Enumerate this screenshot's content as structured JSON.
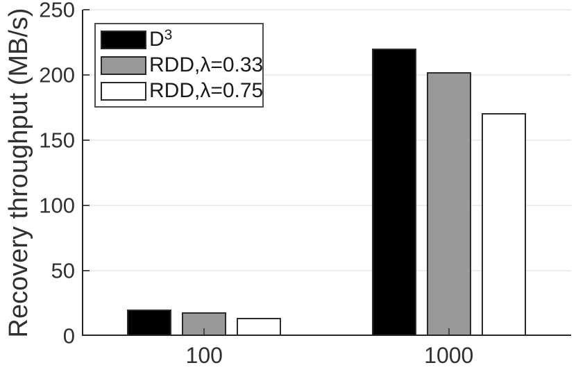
{
  "chart_data": {
    "type": "bar",
    "title": "",
    "xlabel": "",
    "ylabel": "Recovery throughput (MB/s)",
    "categories": [
      "100",
      "1000"
    ],
    "series": [
      {
        "name": "D^3",
        "legend_base": "D",
        "legend_sup": "3",
        "fill": "#000000",
        "values": [
          20,
          220
        ]
      },
      {
        "name": "RDD,λ=0.33",
        "legend_base": "RDD,λ=0.33",
        "legend_sup": "",
        "fill": "#999999",
        "values": [
          18,
          202
        ]
      },
      {
        "name": "RDD,λ=0.75",
        "legend_base": "RDD,λ=0.75",
        "legend_sup": "",
        "fill": "#ffffff",
        "values": [
          14,
          171
        ]
      }
    ],
    "ylim": [
      0,
      250
    ],
    "yticks": [
      0,
      50,
      100,
      150,
      200,
      250
    ],
    "grid": "horizontal",
    "legend_position": "top-left",
    "colors": {
      "bar_edge": "#2b2b2b",
      "axis": "#262626",
      "tick": "#4a4a4a",
      "grid": "#ececec",
      "text": "#303030",
      "background": "#ffffff"
    }
  }
}
